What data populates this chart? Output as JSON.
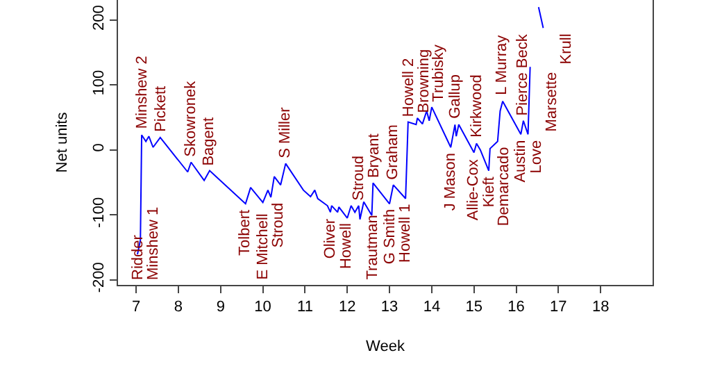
{
  "chart_data": {
    "type": "line",
    "xlabel": "Week",
    "ylabel": "Net units",
    "x": [
      7.03,
      7.1,
      7.13,
      7.23,
      7.3,
      7.4,
      7.57,
      8.22,
      8.3,
      8.61,
      8.74,
      9.59,
      9.71,
      10.0,
      10.12,
      10.19,
      10.27,
      10.42,
      10.54,
      10.96,
      11.13,
      11.23,
      11.3,
      11.53,
      11.6,
      11.63,
      11.77,
      11.8,
      12.0,
      12.09,
      12.18,
      12.27,
      12.3,
      12.39,
      12.58,
      12.61,
      13.0,
      13.09,
      13.38,
      13.44,
      13.63,
      13.66,
      13.78,
      13.88,
      13.94,
      14.0,
      14.45,
      14.55,
      14.58,
      14.64,
      15.0,
      15.06,
      15.15,
      15.35,
      15.38,
      15.56,
      15.62,
      15.68,
      16.11,
      16.17,
      16.28,
      16.33,
      16.44,
      16.53,
      16.64
    ],
    "series": [
      {
        "color": "#0000ff",
        "values": [
          -161,
          -139,
          23,
          13,
          21,
          4,
          19,
          -34,
          -19,
          -47,
          -32,
          -83,
          -58,
          -81,
          -62,
          -73,
          -41,
          -54,
          -21,
          -62,
          -72,
          -62,
          -75,
          -86,
          -96,
          -86,
          -96,
          -88,
          -105,
          -86,
          -96,
          -86,
          -107,
          -80,
          -101,
          -51,
          -83,
          -54,
          -75,
          43,
          39,
          49,
          40,
          60,
          45,
          66,
          4,
          39,
          21,
          39,
          -4,
          10,
          0,
          -32,
          2,
          13,
          60,
          75,
          24,
          45,
          24,
          128,
          null,
          220,
          188
        ]
      }
    ],
    "xlim": [
      6.57,
      19.23
    ],
    "xticks": [
      7,
      8,
      9,
      10,
      11,
      12,
      13,
      14,
      15,
      16,
      17,
      18
    ],
    "ylim": [
      -208,
      231
    ],
    "yticks": [
      -200,
      -100,
      0,
      100,
      200
    ],
    "marker": "none",
    "line_style": "solid",
    "annotations": [
      {
        "text": "Ridder",
        "x": 7.03,
        "y": -161
      },
      {
        "text": "Minshew 1",
        "x": 7.1,
        "y": -139
      },
      {
        "text": "Minshew 2",
        "x": 7.13,
        "y": 23
      },
      {
        "text": "Pickett",
        "x": 7.57,
        "y": 19
      },
      {
        "text": "Skowronek",
        "x": 8.3,
        "y": -19
      },
      {
        "text": "Bagent",
        "x": 8.74,
        "y": -32
      },
      {
        "text": "Tolbert",
        "x": 9.59,
        "y": -83
      },
      {
        "text": "E Mitchell",
        "x": 10.0,
        "y": -81
      },
      {
        "text": "Stroud",
        "x": 10.19,
        "y": -73
      },
      {
        "text": "S Miller",
        "x": 10.54,
        "y": -21
      },
      {
        "text": "Oliver",
        "x": 11.6,
        "y": -96
      },
      {
        "text": "Howell",
        "x": 12.0,
        "y": -105
      },
      {
        "text": "Stroud",
        "x": 12.27,
        "y": -86
      },
      {
        "text": "Trautman",
        "x": 12.58,
        "y": -101
      },
      {
        "text": "Bryant",
        "x": 12.61,
        "y": -51
      },
      {
        "text": "G Smith",
        "x": 13.0,
        "y": -83
      },
      {
        "text": "Graham",
        "x": 13.09,
        "y": -54
      },
      {
        "text": "Howell 1",
        "x": 13.38,
        "y": -75
      },
      {
        "text": "Howell 2",
        "x": 13.44,
        "y": 43
      },
      {
        "text": "Browning",
        "x": 13.66,
        "y": 49
      },
      {
        "text": "Trubisky",
        "x": 14.0,
        "y": 66
      },
      {
        "text": "J Mason",
        "x": 14.45,
        "y": 4
      },
      {
        "text": "Gallup",
        "x": 14.55,
        "y": 39
      },
      {
        "text": "Allie-Cox",
        "x": 15.0,
        "y": -4
      },
      {
        "text": "Kieft",
        "x": 15.35,
        "y": -32
      },
      {
        "text": "Kirkwood",
        "x": 15.06,
        "y": 10
      },
      {
        "text": "Demarcado",
        "x": 15.56,
        "y": 13
      },
      {
        "text": "L Murray",
        "x": 15.68,
        "y": 75
      },
      {
        "text": "Austin",
        "x": 16.11,
        "y": 24
      },
      {
        "text": "Pierce Beck",
        "x": 16.17,
        "y": 45
      },
      {
        "text": "Love",
        "x": 16.28,
        "y": 24
      },
      {
        "text": "Marsette",
        "x": 16.33,
        "y": 128
      },
      {
        "text": "Krull",
        "x": 16.64,
        "y": 188
      }
    ]
  }
}
